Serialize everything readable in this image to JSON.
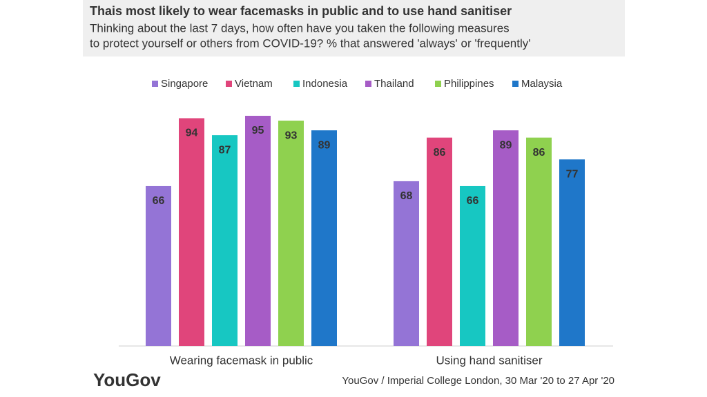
{
  "chart_data": {
    "type": "bar",
    "title": "Thais most likely to wear facemasks in public and to use hand sanitiser",
    "subtitle": [
      "Thinking about the last 7 days, how often have you taken the following measures",
      "to protect yourself or others from COVID-19? % that answered 'always' or 'frequently'"
    ],
    "categories": [
      "Wearing facemask in public",
      "Using hand sanitiser"
    ],
    "series": [
      {
        "name": "Singapore",
        "color": "#9474d6",
        "values": [
          66,
          68
        ]
      },
      {
        "name": "Vietnam",
        "color": "#e0457b",
        "values": [
          94,
          86
        ]
      },
      {
        "name": "Indonesia",
        "color": "#17c7c2",
        "values": [
          87,
          66
        ]
      },
      {
        "name": "Thailand",
        "color": "#a65cc6",
        "values": [
          95,
          89
        ]
      },
      {
        "name": "Philippines",
        "color": "#8fd14f",
        "values": [
          93,
          86
        ]
      },
      {
        "name": "Malaysia",
        "color": "#1f77c9",
        "values": [
          89,
          77
        ]
      }
    ],
    "logo": "YouGov",
    "source": "YouGov / Imperial College London, 30 Mar '20 to 27 Apr '20"
  }
}
